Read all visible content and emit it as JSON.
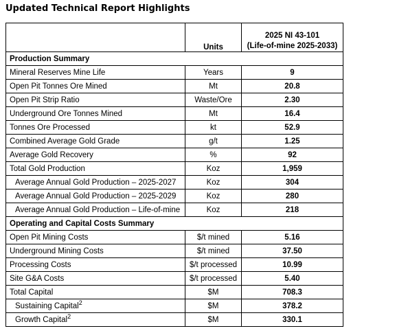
{
  "title": "Updated Technical Report Highlights",
  "table": {
    "header": {
      "metric_label": "",
      "units_label": "Units",
      "value_label_line1": "2025 NI 43-101",
      "value_label_line2": "(Life-of-mine 2025-2033)"
    },
    "rows": [
      {
        "type": "section",
        "label": "Production Summary"
      },
      {
        "type": "data",
        "metric": "Mineral Reserves Mine Life",
        "units": "Years",
        "value": "9",
        "indent": false
      },
      {
        "type": "data",
        "metric": "Open Pit Tonnes Ore Mined",
        "units": "Mt",
        "value": "20.8",
        "indent": false
      },
      {
        "type": "data",
        "metric": "Open Pit Strip Ratio",
        "units": "Waste/Ore",
        "value": "2.30",
        "indent": false
      },
      {
        "type": "data",
        "metric": "Underground Ore Tonnes Mined",
        "units": "Mt",
        "value": "16.4",
        "indent": false
      },
      {
        "type": "data",
        "metric": "Tonnes Ore Processed",
        "units": "kt",
        "value": "52.9",
        "indent": false
      },
      {
        "type": "data",
        "metric": "Combined Average Gold Grade",
        "units": "g/t",
        "value": "1.25",
        "indent": false
      },
      {
        "type": "data",
        "metric": "Average Gold Recovery",
        "units": "%",
        "value": "92",
        "indent": false
      },
      {
        "type": "data",
        "metric": "Total Gold Production",
        "units": "Koz",
        "value": "1,959",
        "indent": false
      },
      {
        "type": "data",
        "metric": "Average Annual Gold Production – 2025-2027",
        "units": "Koz",
        "value": "304",
        "indent": true
      },
      {
        "type": "data",
        "metric": "Average Annual Gold Production – 2025-2029",
        "units": "Koz",
        "value": "280",
        "indent": true
      },
      {
        "type": "data",
        "metric": "Average Annual Gold Production – Life-of-mine",
        "units": "Koz",
        "value": "218",
        "indent": true
      },
      {
        "type": "section",
        "label": "Operating and Capital Costs Summary"
      },
      {
        "type": "data",
        "metric": "Open Pit Mining Costs",
        "units": "$/t mined",
        "value": "5.16",
        "indent": false
      },
      {
        "type": "data",
        "metric": "Underground Mining Costs",
        "units": "$/t mined",
        "value": "37.50",
        "indent": false
      },
      {
        "type": "data",
        "metric": "Processing Costs",
        "units": "$/t processed",
        "value": "10.99",
        "indent": false
      },
      {
        "type": "data",
        "metric": "Site G&A Costs",
        "units": "$/t processed",
        "value": "5.40",
        "indent": false
      },
      {
        "type": "data",
        "metric": "Total Capital",
        "units": "$M",
        "value": "708.3",
        "indent": false
      },
      {
        "type": "data",
        "metric": "Sustaining Capital",
        "sup": "2",
        "units": "$M",
        "value": "378.2",
        "indent": true
      },
      {
        "type": "data",
        "metric": "Growth Capital",
        "sup": "2",
        "units": "$M",
        "value": "330.1",
        "indent": true
      }
    ]
  }
}
